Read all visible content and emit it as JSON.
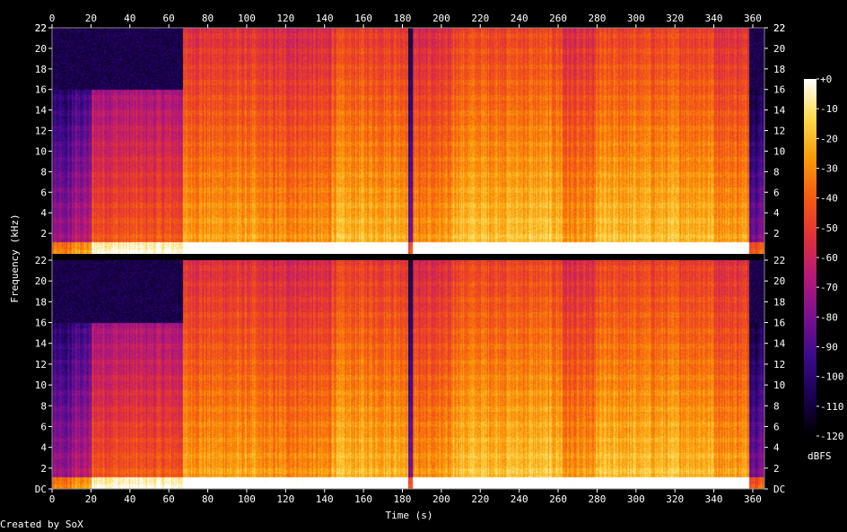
{
  "chart_data": {
    "type": "heatmap",
    "xlabel": "Time (s)",
    "ylabel": "Frequency (kHz)",
    "x_ticks": [
      0,
      20,
      40,
      60,
      80,
      100,
      120,
      140,
      160,
      180,
      200,
      220,
      240,
      260,
      280,
      300,
      320,
      340,
      360
    ],
    "y_ticks": [
      "DC",
      "2",
      "4",
      "6",
      "8",
      "10",
      "12",
      "14",
      "16",
      "18",
      "20",
      "22"
    ],
    "y_top_tick": "22",
    "xlim": [
      0,
      366
    ],
    "ylim_khz": [
      0,
      22
    ],
    "channels": 2,
    "colorbar": {
      "label": "dBFS",
      "ticks": [
        "+0",
        "-10",
        "-20",
        "-30",
        "-40",
        "-50",
        "-60",
        "-70",
        "-80",
        "-90",
        "-100",
        "-110",
        "-120"
      ],
      "range": [
        -120,
        0
      ],
      "stops": [
        "#000000",
        "#1a0050",
        "#3a0a8c",
        "#7a108f",
        "#b5187a",
        "#e0303a",
        "#f55a12",
        "#fa9a08",
        "#fdd84a",
        "#ffffff"
      ]
    },
    "segments": [
      {
        "t0": 0,
        "t1": 10,
        "cutoff_khz": 16,
        "level": 0.18
      },
      {
        "t0": 10,
        "t1": 20,
        "cutoff_khz": 16,
        "level": 0.25
      },
      {
        "t0": 20,
        "t1": 67,
        "cutoff_khz": 16,
        "level": 0.45
      },
      {
        "t0": 67,
        "t1": 105,
        "cutoff_khz": 22,
        "level": 0.58
      },
      {
        "t0": 105,
        "t1": 143,
        "cutoff_khz": 22,
        "level": 0.55
      },
      {
        "t0": 143,
        "t1": 183,
        "cutoff_khz": 22,
        "level": 0.62
      },
      {
        "t0": 183,
        "t1": 185,
        "cutoff_khz": 22,
        "level": 0.1
      },
      {
        "t0": 185,
        "t1": 205,
        "cutoff_khz": 22,
        "level": 0.55
      },
      {
        "t0": 205,
        "t1": 262,
        "cutoff_khz": 22,
        "level": 0.64
      },
      {
        "t0": 262,
        "t1": 279,
        "cutoff_khz": 22,
        "level": 0.55
      },
      {
        "t0": 279,
        "t1": 340,
        "cutoff_khz": 22,
        "level": 0.63
      },
      {
        "t0": 340,
        "t1": 358,
        "cutoff_khz": 22,
        "level": 0.58
      },
      {
        "t0": 358,
        "t1": 366,
        "cutoff_khz": 16,
        "level": 0.15
      }
    ]
  },
  "credit": "Created by SoX",
  "icons": {
    "colorbar": "colorbar-gradient"
  }
}
